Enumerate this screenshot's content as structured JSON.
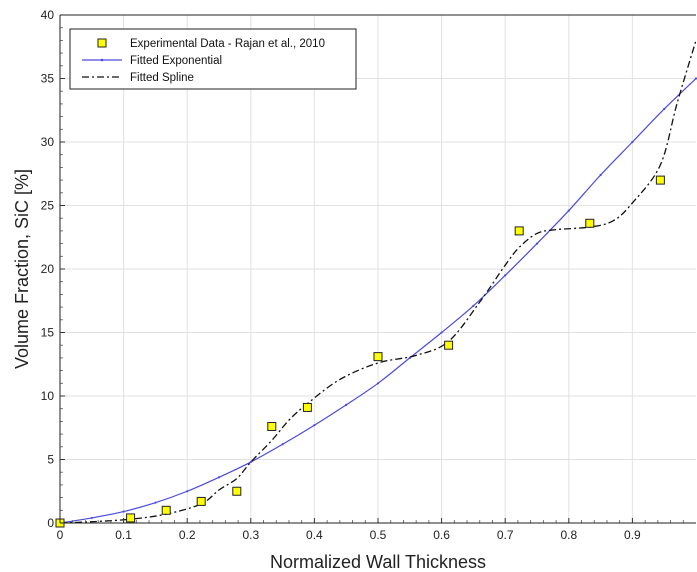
{
  "chart_data": {
    "type": "scatter",
    "xlabel": "Normalized Wall Thickness",
    "ylabel": "Volume Fraction, SiC [%]",
    "xlim": [
      0,
      1
    ],
    "ylim": [
      0,
      40
    ],
    "x_ticks": [
      "0",
      "0.1",
      "0.2",
      "0.3",
      "0.4",
      "0.5",
      "0.6",
      "0.7",
      "0.8",
      "0.9"
    ],
    "y_ticks": [
      "0",
      "5",
      "10",
      "15",
      "20",
      "25",
      "30",
      "35",
      "40"
    ],
    "grid": true,
    "legend_position": "top-left",
    "series": [
      {
        "name": "Experimental Data - Rajan et al., 2010",
        "style": "square-markers",
        "color": "#ffff00",
        "x": [
          0.0,
          0.111,
          0.167,
          0.222,
          0.278,
          0.333,
          0.389,
          0.5,
          0.611,
          0.722,
          0.833,
          0.944
        ],
        "y": [
          0.0,
          0.4,
          1.0,
          1.7,
          2.5,
          7.6,
          9.1,
          13.1,
          14.0,
          23.0,
          23.6,
          27.0
        ]
      },
      {
        "name": "Fitted Exponential",
        "style": "solid-line",
        "color": "#4a4adf",
        "x": [
          0.0,
          0.05,
          0.1,
          0.15,
          0.2,
          0.25,
          0.3,
          0.35,
          0.4,
          0.45,
          0.5,
          0.55,
          0.6,
          0.65,
          0.7,
          0.75,
          0.8,
          0.85,
          0.9,
          0.95,
          1.0
        ],
        "y": [
          0.0,
          0.4,
          0.9,
          1.6,
          2.5,
          3.6,
          4.8,
          6.2,
          7.7,
          9.3,
          11.0,
          13.0,
          15.0,
          17.1,
          19.5,
          22.0,
          24.6,
          27.4,
          30.0,
          32.6,
          35.0
        ]
      },
      {
        "name": "Fitted Spline",
        "style": "dash-dot-line",
        "color": "#111111",
        "x": [
          0.0,
          0.05,
          0.111,
          0.167,
          0.222,
          0.25,
          0.278,
          0.3,
          0.333,
          0.36,
          0.389,
          0.44,
          0.5,
          0.56,
          0.611,
          0.66,
          0.7,
          0.722,
          0.75,
          0.78,
          0.833,
          0.87,
          0.9,
          0.944,
          0.97,
          1.0
        ],
        "y": [
          0.0,
          0.1,
          0.3,
          0.7,
          1.5,
          2.6,
          3.5,
          4.8,
          6.5,
          8.1,
          9.4,
          11.3,
          12.6,
          13.2,
          14.3,
          17.4,
          20.3,
          21.7,
          22.8,
          23.1,
          23.3,
          23.8,
          25.2,
          28.2,
          33.0,
          38.0
        ]
      }
    ]
  }
}
